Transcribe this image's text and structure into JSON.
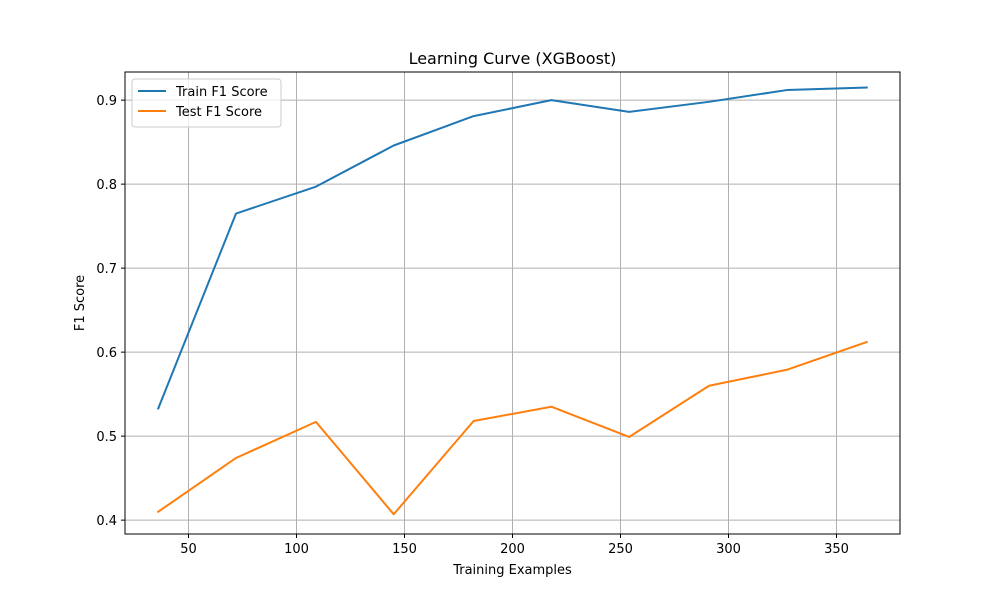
{
  "chart_data": {
    "type": "line",
    "title": "Learning Curve (XGBoost)",
    "xlabel": "Training Examples",
    "ylabel": "F1 Score",
    "xlim": [
      20.6,
      379.4
    ],
    "ylim": [
      0.3835,
      0.9335
    ],
    "xticks": [
      50,
      100,
      150,
      200,
      250,
      300,
      350
    ],
    "yticks": [
      0.4,
      0.5,
      0.6,
      0.7,
      0.8,
      0.9
    ],
    "ytick_labels": [
      "0.4",
      "0.5",
      "0.6",
      "0.7",
      "0.8",
      "0.9"
    ],
    "grid": true,
    "legend_position": "top-left",
    "x": [
      36,
      72,
      109,
      145,
      182,
      218,
      254,
      291,
      327,
      364
    ],
    "series": [
      {
        "name": "Train F1 Score",
        "color": "#1f77b4",
        "values": [
          0.533,
          0.765,
          0.797,
          0.846,
          0.881,
          0.9,
          0.886,
          0.898,
          0.912,
          0.915
        ]
      },
      {
        "name": "Test F1 Score",
        "color": "#ff7f0e",
        "values": [
          0.41,
          0.474,
          0.517,
          0.407,
          0.518,
          0.535,
          0.499,
          0.56,
          0.579,
          0.612
        ]
      }
    ]
  }
}
